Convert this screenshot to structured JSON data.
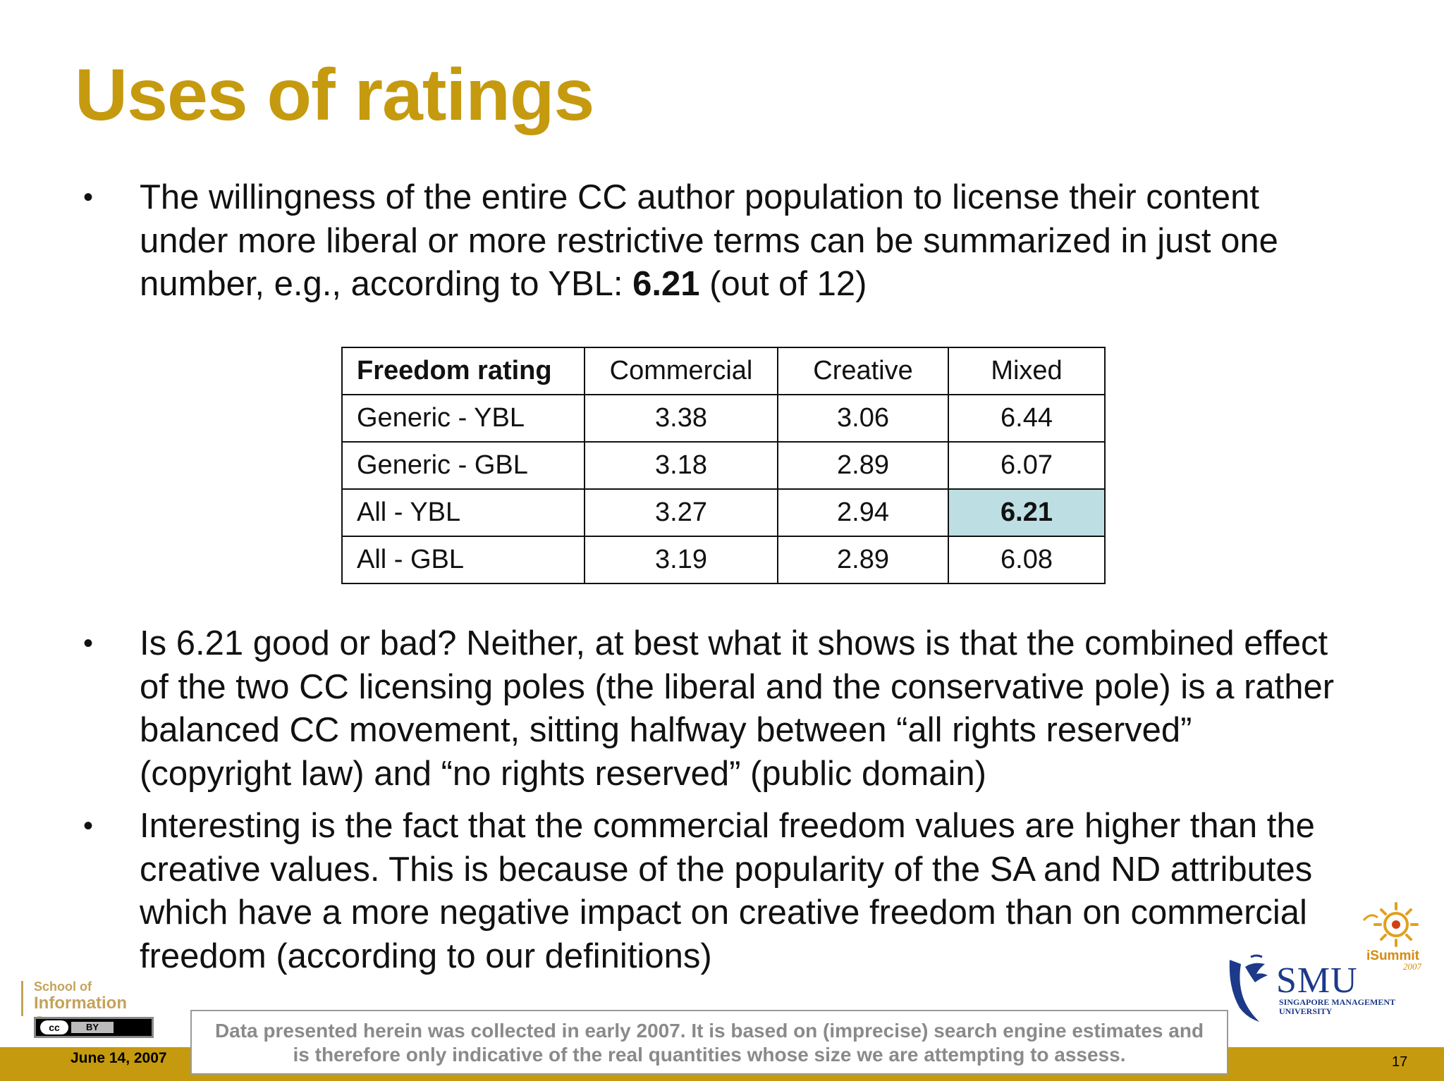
{
  "slide": {
    "title": "Uses of ratings",
    "bullet_char": "•",
    "bullet1": {
      "before": "The willingness of the entire CC author population to license their content under more liberal or more restrictive terms can be summarized in just one number, e.g., according to YBL: ",
      "value": "6.21",
      "after": " (out of 12)"
    },
    "bullet2": "Is 6.21 good or bad? Neither, at best what it shows is that the combined effect of the two CC licensing poles (the liberal and the conservative pole) is a rather balanced CC movement, sitting halfway between “all rights reserved” (copyright law) and “no rights reserved” (public domain)",
    "bullet3": "Interesting is the fact that the commercial freedom values are higher than the creative values. This is because of the popularity of the SA and ND attributes which have a more negative impact on creative freedom than on commercial freedom (according to our definitions)"
  },
  "table": {
    "headers": [
      "Freedom rating",
      "Commercial",
      "Creative",
      "Mixed"
    ],
    "rows": [
      [
        "Generic - YBL",
        "3.38",
        "3.06",
        "6.44"
      ],
      [
        "Generic - GBL",
        "3.18",
        "2.89",
        "6.07"
      ],
      [
        "All - YBL",
        "3.27",
        "2.94",
        "6.21"
      ],
      [
        "All - GBL",
        "3.19",
        "2.89",
        "6.08"
      ]
    ],
    "highlight_color": "#bddfe4"
  },
  "footer": {
    "date": "June 14, 2007",
    "page_number": "17",
    "disclaimer_line1": "Data presented herein was collected in early 2007. It is based on (imprecise) search engine estimates and",
    "disclaimer_line2": "is therefore only indicative of the real quantities whose size we are attempting to assess.",
    "school_line1": "School of",
    "school_line2": "Information Systems",
    "cc_label": "cc",
    "by_label": "BY",
    "smu_name": "SMU",
    "smu_sub1": "SINGAPORE MANAGEMENT",
    "smu_sub2": "UNIVERSITY",
    "isummit_name": "iSummit",
    "isummit_year": "2007"
  },
  "colors": {
    "title_gold": "#c59a0e",
    "footer_bar": "#c59a0e",
    "smu_blue": "#1d3a8a",
    "isummit_orange": "#d58a11"
  }
}
